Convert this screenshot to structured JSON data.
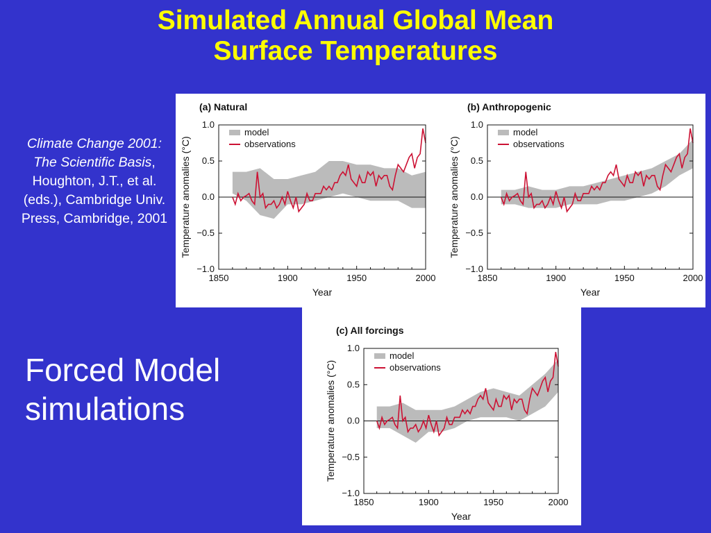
{
  "slide": {
    "title_line1": "Simulated Annual Global Mean",
    "title_line2": "Surface Temperatures",
    "citation_italic": "Climate Change 2001: The Scientific Basis",
    "citation_rest": ", Houghton, J.T., et al. (eds.), Cambridge Univ. Press, Cambridge, 2001",
    "caption": "Forced Model simulations"
  },
  "colors": {
    "background": "#3333cc",
    "title": "#ffff00",
    "model": "#bbbbbb",
    "observations": "#cc1133"
  },
  "chart_data": [
    {
      "type": "line",
      "title": "(a) Natural",
      "xlabel": "Year",
      "ylabel": "Temperature anomalies (°C)",
      "xlim": [
        1850,
        2000
      ],
      "ylim": [
        -1.0,
        1.0
      ],
      "xticks": [
        "1850",
        "1900",
        "1950",
        "2000"
      ],
      "yticks": [
        "1.0",
        "0.5",
        "0.0",
        "−0.5",
        "−1.0"
      ],
      "legend": [
        "model",
        "observations"
      ],
      "legend_position": "top-left",
      "series": [
        {
          "name": "model",
          "kind": "band",
          "x": [
            1860,
            1870,
            1880,
            1890,
            1900,
            1910,
            1920,
            1930,
            1940,
            1950,
            1960,
            1970,
            1980,
            1990,
            2000
          ],
          "lower": [
            0.05,
            -0.05,
            -0.25,
            -0.3,
            -0.1,
            -0.1,
            -0.05,
            0.0,
            0.05,
            0.0,
            -0.05,
            -0.05,
            -0.05,
            -0.15,
            -0.15
          ],
          "upper": [
            0.35,
            0.35,
            0.4,
            0.25,
            0.25,
            0.3,
            0.35,
            0.5,
            0.5,
            0.45,
            0.45,
            0.4,
            0.4,
            0.3,
            0.35
          ]
        },
        {
          "name": "observations",
          "kind": "line",
          "x": [
            1860,
            1862,
            1864,
            1866,
            1868,
            1870,
            1872,
            1874,
            1876,
            1878,
            1880,
            1882,
            1884,
            1886,
            1888,
            1890,
            1892,
            1894,
            1896,
            1898,
            1900,
            1902,
            1904,
            1906,
            1908,
            1910,
            1912,
            1914,
            1916,
            1918,
            1920,
            1922,
            1924,
            1926,
            1928,
            1930,
            1932,
            1934,
            1936,
            1938,
            1940,
            1942,
            1944,
            1946,
            1948,
            1950,
            1952,
            1954,
            1956,
            1958,
            1960,
            1962,
            1964,
            1966,
            1968,
            1970,
            1972,
            1974,
            1976,
            1978,
            1980,
            1982,
            1984,
            1986,
            1988,
            1990,
            1992,
            1994,
            1996,
            1998,
            2000
          ],
          "y": [
            0.0,
            -0.1,
            0.05,
            -0.05,
            0.0,
            0.02,
            0.05,
            -0.05,
            -0.1,
            0.35,
            0.0,
            0.05,
            -0.15,
            -0.1,
            -0.1,
            -0.05,
            -0.15,
            -0.1,
            0.0,
            -0.1,
            0.08,
            -0.05,
            -0.15,
            0.0,
            -0.2,
            -0.15,
            -0.1,
            0.05,
            -0.05,
            -0.05,
            0.05,
            0.05,
            0.05,
            0.15,
            0.1,
            0.15,
            0.1,
            0.2,
            0.2,
            0.3,
            0.35,
            0.3,
            0.45,
            0.25,
            0.2,
            0.15,
            0.3,
            0.2,
            0.2,
            0.35,
            0.3,
            0.35,
            0.15,
            0.3,
            0.25,
            0.3,
            0.3,
            0.15,
            0.1,
            0.3,
            0.45,
            0.4,
            0.35,
            0.45,
            0.55,
            0.6,
            0.4,
            0.55,
            0.6,
            0.95,
            0.75
          ]
        }
      ]
    },
    {
      "type": "line",
      "title": "(b) Anthropogenic",
      "xlabel": "Year",
      "ylabel": "Temperature anomalies (°C)",
      "xlim": [
        1850,
        2000
      ],
      "ylim": [
        -1.0,
        1.0
      ],
      "xticks": [
        "1850",
        "1900",
        "1950",
        "2000"
      ],
      "yticks": [
        "1.0",
        "0.5",
        "0.0",
        "−0.5",
        "−1.0"
      ],
      "legend": [
        "model",
        "observations"
      ],
      "legend_position": "top-left",
      "series": [
        {
          "name": "model",
          "kind": "band",
          "x": [
            1860,
            1870,
            1880,
            1890,
            1900,
            1910,
            1920,
            1930,
            1940,
            1950,
            1960,
            1970,
            1980,
            1990,
            2000
          ],
          "lower": [
            -0.1,
            -0.1,
            -0.15,
            -0.15,
            -0.15,
            -0.1,
            -0.1,
            -0.1,
            -0.05,
            -0.05,
            0.0,
            0.05,
            0.15,
            0.3,
            0.4
          ],
          "upper": [
            0.1,
            0.1,
            0.15,
            0.1,
            0.1,
            0.15,
            0.15,
            0.2,
            0.25,
            0.3,
            0.35,
            0.4,
            0.5,
            0.6,
            0.8
          ]
        },
        {
          "name": "observations",
          "kind": "line",
          "x": [
            1860,
            1862,
            1864,
            1866,
            1868,
            1870,
            1872,
            1874,
            1876,
            1878,
            1880,
            1882,
            1884,
            1886,
            1888,
            1890,
            1892,
            1894,
            1896,
            1898,
            1900,
            1902,
            1904,
            1906,
            1908,
            1910,
            1912,
            1914,
            1916,
            1918,
            1920,
            1922,
            1924,
            1926,
            1928,
            1930,
            1932,
            1934,
            1936,
            1938,
            1940,
            1942,
            1944,
            1946,
            1948,
            1950,
            1952,
            1954,
            1956,
            1958,
            1960,
            1962,
            1964,
            1966,
            1968,
            1970,
            1972,
            1974,
            1976,
            1978,
            1980,
            1982,
            1984,
            1986,
            1988,
            1990,
            1992,
            1994,
            1996,
            1998,
            2000
          ],
          "y": [
            0.0,
            -0.1,
            0.05,
            -0.05,
            0.0,
            0.02,
            0.05,
            -0.05,
            -0.1,
            0.35,
            0.0,
            0.05,
            -0.15,
            -0.1,
            -0.1,
            -0.05,
            -0.15,
            -0.1,
            0.0,
            -0.1,
            0.08,
            -0.05,
            -0.15,
            0.0,
            -0.2,
            -0.15,
            -0.1,
            0.05,
            -0.05,
            -0.05,
            0.05,
            0.05,
            0.05,
            0.15,
            0.1,
            0.15,
            0.1,
            0.2,
            0.2,
            0.3,
            0.35,
            0.3,
            0.45,
            0.25,
            0.2,
            0.15,
            0.3,
            0.2,
            0.2,
            0.35,
            0.3,
            0.35,
            0.15,
            0.3,
            0.25,
            0.3,
            0.3,
            0.15,
            0.1,
            0.3,
            0.45,
            0.4,
            0.35,
            0.45,
            0.55,
            0.6,
            0.4,
            0.55,
            0.6,
            0.95,
            0.75
          ]
        }
      ]
    },
    {
      "type": "line",
      "title": "(c) All forcings",
      "xlabel": "Year",
      "ylabel": "Temperature anomalies (°C)",
      "xlim": [
        1850,
        2000
      ],
      "ylim": [
        -1.0,
        1.0
      ],
      "xticks": [
        "1850",
        "1900",
        "1950",
        "2000"
      ],
      "yticks": [
        "1.0",
        "0.5",
        "0.0",
        "−0.5",
        "−1.0"
      ],
      "legend": [
        "model",
        "observations"
      ],
      "legend_position": "top-left",
      "series": [
        {
          "name": "model",
          "kind": "band",
          "x": [
            1860,
            1870,
            1880,
            1890,
            1900,
            1910,
            1920,
            1930,
            1940,
            1950,
            1960,
            1970,
            1980,
            1990,
            2000
          ],
          "lower": [
            -0.1,
            -0.1,
            -0.2,
            -0.3,
            -0.15,
            -0.15,
            -0.1,
            0.0,
            0.05,
            0.05,
            0.05,
            0.0,
            0.1,
            0.2,
            0.4
          ],
          "upper": [
            0.2,
            0.2,
            0.25,
            0.15,
            0.15,
            0.15,
            0.2,
            0.3,
            0.4,
            0.45,
            0.4,
            0.35,
            0.5,
            0.65,
            0.85
          ]
        },
        {
          "name": "observations",
          "kind": "line",
          "x": [
            1860,
            1862,
            1864,
            1866,
            1868,
            1870,
            1872,
            1874,
            1876,
            1878,
            1880,
            1882,
            1884,
            1886,
            1888,
            1890,
            1892,
            1894,
            1896,
            1898,
            1900,
            1902,
            1904,
            1906,
            1908,
            1910,
            1912,
            1914,
            1916,
            1918,
            1920,
            1922,
            1924,
            1926,
            1928,
            1930,
            1932,
            1934,
            1936,
            1938,
            1940,
            1942,
            1944,
            1946,
            1948,
            1950,
            1952,
            1954,
            1956,
            1958,
            1960,
            1962,
            1964,
            1966,
            1968,
            1970,
            1972,
            1974,
            1976,
            1978,
            1980,
            1982,
            1984,
            1986,
            1988,
            1990,
            1992,
            1994,
            1996,
            1998,
            2000
          ],
          "y": [
            0.0,
            -0.1,
            0.05,
            -0.05,
            0.0,
            0.02,
            0.05,
            -0.05,
            -0.1,
            0.35,
            0.0,
            0.05,
            -0.15,
            -0.1,
            -0.1,
            -0.05,
            -0.15,
            -0.1,
            0.0,
            -0.1,
            0.08,
            -0.05,
            -0.15,
            0.0,
            -0.2,
            -0.15,
            -0.1,
            0.05,
            -0.05,
            -0.05,
            0.05,
            0.05,
            0.05,
            0.15,
            0.1,
            0.15,
            0.1,
            0.2,
            0.2,
            0.3,
            0.35,
            0.3,
            0.45,
            0.25,
            0.2,
            0.15,
            0.3,
            0.2,
            0.2,
            0.35,
            0.3,
            0.35,
            0.15,
            0.3,
            0.25,
            0.3,
            0.3,
            0.15,
            0.1,
            0.3,
            0.45,
            0.4,
            0.35,
            0.45,
            0.55,
            0.6,
            0.4,
            0.55,
            0.6,
            0.95,
            0.75
          ]
        }
      ]
    }
  ]
}
